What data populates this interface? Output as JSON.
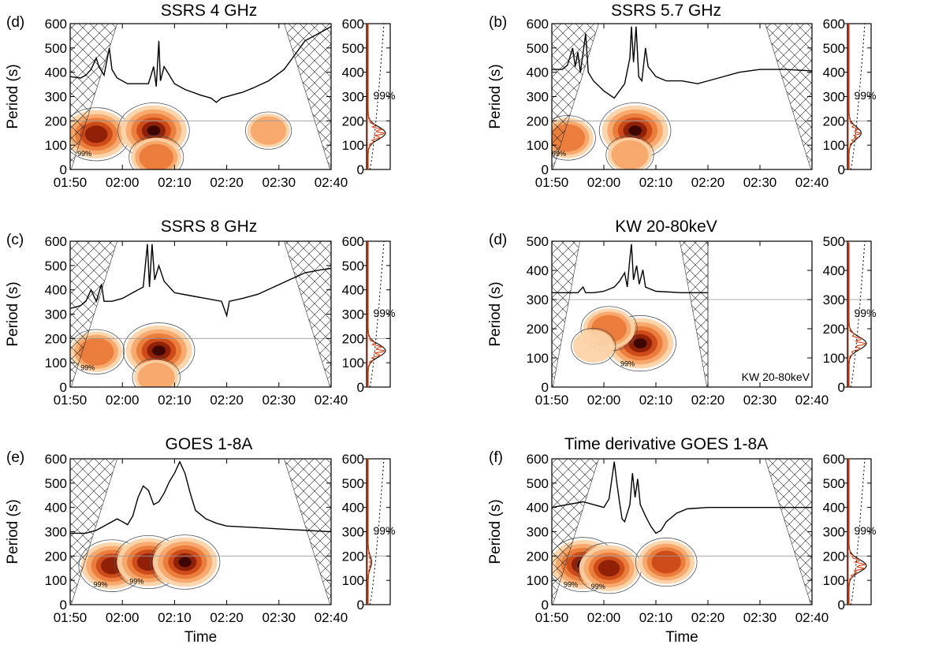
{
  "chart_data": [
    {
      "id": "a",
      "panel_label": "(d)",
      "title": "SSRS 4 GHz",
      "type": "wavelet",
      "ylabel": "Period (s)",
      "xlabel": "",
      "ylim": [
        0,
        600
      ],
      "yticks": [
        "0",
        "100",
        "200",
        "300",
        "400",
        "500",
        "600"
      ],
      "xticks": [
        "01:50",
        "02:00",
        "02:10",
        "02:20",
        "02:30",
        "02:40"
      ],
      "xrange_min": [
        0,
        50
      ],
      "gws_yticks": [
        "0",
        "100",
        "200",
        "300",
        "400",
        "500",
        "600"
      ],
      "sig_label": "99%",
      "contour_label": "99%",
      "reference_period": 200,
      "cone_end_min": 50,
      "lightcurve": [
        [
          0,
          0.65
        ],
        [
          2,
          0.64
        ],
        [
          3,
          0.66
        ],
        [
          4,
          0.7
        ],
        [
          5,
          0.78
        ],
        [
          5.5,
          0.72
        ],
        [
          6.5,
          0.66
        ],
        [
          7.5,
          0.85
        ],
        [
          8,
          0.7
        ],
        [
          9,
          0.64
        ],
        [
          11,
          0.6
        ],
        [
          13,
          0.6
        ],
        [
          15,
          0.6
        ],
        [
          16,
          0.72
        ],
        [
          16.5,
          0.58
        ],
        [
          17,
          0.9
        ],
        [
          17.3,
          0.62
        ],
        [
          18,
          0.72
        ],
        [
          19,
          0.66
        ],
        [
          20,
          0.6
        ],
        [
          22,
          0.56
        ],
        [
          25,
          0.52
        ],
        [
          27,
          0.5
        ],
        [
          28,
          0.47
        ],
        [
          29,
          0.5
        ],
        [
          31,
          0.52
        ],
        [
          33,
          0.54
        ],
        [
          35,
          0.57
        ],
        [
          38,
          0.62
        ],
        [
          41,
          0.7
        ],
        [
          43,
          0.8
        ],
        [
          45,
          0.9
        ],
        [
          47,
          0.94
        ],
        [
          48,
          0.96
        ],
        [
          50,
          1.0
        ]
      ],
      "power_blobs": [
        {
          "t": 5,
          "p": 145,
          "intensity": 0.9
        },
        {
          "t": 16,
          "p": 160,
          "intensity": 1.0
        },
        {
          "t": 16.5,
          "p": 50,
          "intensity": 0.5
        },
        {
          "t": 38,
          "p": 160,
          "intensity": 0.25
        }
      ],
      "gws": {
        "peak_period": 150,
        "max_power": 1.0
      }
    },
    {
      "id": "b",
      "panel_label": "(b)",
      "title": "SSRS 5.7 GHz",
      "type": "wavelet",
      "ylabel": "Period (s)",
      "xlabel": "",
      "ylim": [
        0,
        600
      ],
      "yticks": [
        "0",
        "100",
        "200",
        "300",
        "400",
        "500",
        "600"
      ],
      "xticks": [
        "01:50",
        "02:00",
        "02:10",
        "02:20",
        "02:30",
        "02:40"
      ],
      "xrange_min": [
        0,
        50
      ],
      "gws_yticks": [
        "0",
        "100",
        "200",
        "300",
        "400",
        "500",
        "600"
      ],
      "sig_label": "99%",
      "contour_label": "99%",
      "reference_period": 200,
      "cone_end_min": 50,
      "lightcurve": [
        [
          0,
          0.7
        ],
        [
          2,
          0.7
        ],
        [
          3,
          0.73
        ],
        [
          4,
          0.85
        ],
        [
          4.5,
          0.72
        ],
        [
          5,
          0.82
        ],
        [
          5.5,
          0.68
        ],
        [
          6.5,
          0.95
        ],
        [
          7,
          0.68
        ],
        [
          8,
          0.62
        ],
        [
          10,
          0.55
        ],
        [
          12,
          0.5
        ],
        [
          14,
          0.6
        ],
        [
          15,
          0.78
        ],
        [
          15.3,
          1.0
        ],
        [
          15.7,
          0.75
        ],
        [
          16.2,
          1.0
        ],
        [
          16.7,
          0.65
        ],
        [
          17.3,
          0.62
        ],
        [
          18,
          0.85
        ],
        [
          18.5,
          0.72
        ],
        [
          20,
          0.65
        ],
        [
          22,
          0.62
        ],
        [
          25,
          0.62
        ],
        [
          28,
          0.6
        ],
        [
          32,
          0.64
        ],
        [
          36,
          0.68
        ],
        [
          40,
          0.7
        ],
        [
          45,
          0.7
        ],
        [
          50,
          0.69
        ]
      ],
      "power_blobs": [
        {
          "t": 3,
          "p": 130,
          "intensity": 0.55
        },
        {
          "t": 16,
          "p": 160,
          "intensity": 1.0
        },
        {
          "t": 15,
          "p": 60,
          "intensity": 0.3
        }
      ],
      "gws": {
        "peak_period": 150,
        "max_power": 0.7
      }
    },
    {
      "id": "c",
      "panel_label": "(c)",
      "title": "SSRS 8 GHz",
      "type": "wavelet",
      "ylabel": "Period (s)",
      "xlabel": "",
      "ylim": [
        0,
        600
      ],
      "yticks": [
        "0",
        "100",
        "200",
        "300",
        "400",
        "500",
        "600"
      ],
      "xticks": [
        "01:50",
        "02:00",
        "02:10",
        "02:20",
        "02:30",
        "02:40"
      ],
      "xrange_min": [
        0,
        50
      ],
      "gws_yticks": [
        "0",
        "100",
        "200",
        "300",
        "400",
        "500",
        "600"
      ],
      "sig_label": "99%",
      "contour_label": "99%",
      "reference_period": 200,
      "cone_end_min": 50,
      "lightcurve": [
        [
          0,
          0.55
        ],
        [
          2,
          0.57
        ],
        [
          3,
          0.6
        ],
        [
          4,
          0.68
        ],
        [
          5,
          0.6
        ],
        [
          6,
          0.72
        ],
        [
          6.5,
          0.6
        ],
        [
          8,
          0.6
        ],
        [
          10,
          0.62
        ],
        [
          12,
          0.66
        ],
        [
          14,
          0.7
        ],
        [
          14.8,
          1.0
        ],
        [
          15.2,
          0.7
        ],
        [
          15.7,
          1.0
        ],
        [
          16.2,
          0.75
        ],
        [
          17,
          0.85
        ],
        [
          18,
          0.74
        ],
        [
          20,
          0.66
        ],
        [
          23,
          0.64
        ],
        [
          26,
          0.62
        ],
        [
          29,
          0.6
        ],
        [
          30,
          0.5
        ],
        [
          30.5,
          0.6
        ],
        [
          33,
          0.62
        ],
        [
          36,
          0.65
        ],
        [
          39,
          0.7
        ],
        [
          42,
          0.75
        ],
        [
          45,
          0.8
        ],
        [
          48,
          0.82
        ],
        [
          50,
          0.83
        ]
      ],
      "power_blobs": [
        {
          "t": 5,
          "p": 145,
          "intensity": 0.55
        },
        {
          "t": 17,
          "p": 150,
          "intensity": 1.0
        },
        {
          "t": 16.5,
          "p": 40,
          "intensity": 0.3
        }
      ],
      "gws": {
        "peak_period": 150,
        "max_power": 1.0
      }
    },
    {
      "id": "d",
      "panel_label": "(d)",
      "title": "KW 20-80keV",
      "type": "wavelet",
      "ylabel": "Period (s)",
      "xlabel": "",
      "ylim": [
        0,
        500
      ],
      "yticks": [
        "0",
        "100",
        "200",
        "300",
        "400",
        "500"
      ],
      "xticks": [
        "01:50",
        "02:00",
        "02:10",
        "02:20",
        "02:30",
        "02:40"
      ],
      "xrange_min": [
        0,
        50
      ],
      "gws_yticks": [
        "0",
        "100",
        "200",
        "300",
        "400",
        "500"
      ],
      "sig_label": "99%",
      "contour_label": "99%",
      "reference_period": 300,
      "cone_end_min": 30,
      "inner_label": "KW 20-80keV",
      "lightcurve": [
        [
          0,
          0.66
        ],
        [
          3,
          0.66
        ],
        [
          5,
          0.66
        ],
        [
          6,
          0.7
        ],
        [
          6.5,
          0.66
        ],
        [
          8,
          0.66
        ],
        [
          10,
          0.67
        ],
        [
          12,
          0.7
        ],
        [
          13,
          0.74
        ],
        [
          14,
          0.8
        ],
        [
          14.5,
          0.7
        ],
        [
          15,
          0.9
        ],
        [
          15.3,
          1.0
        ],
        [
          15.7,
          0.75
        ],
        [
          16.3,
          0.85
        ],
        [
          16.8,
          0.72
        ],
        [
          17.5,
          0.82
        ],
        [
          18,
          0.7
        ],
        [
          20,
          0.67
        ],
        [
          25,
          0.66
        ],
        [
          30,
          0.66
        ]
      ],
      "power_blobs": [
        {
          "t": 17,
          "p": 150,
          "intensity": 1.0
        },
        {
          "t": 11,
          "p": 200,
          "intensity": 0.55
        },
        {
          "t": 8,
          "p": 140,
          "intensity": 0.2
        }
      ],
      "gws": {
        "peak_period": 150,
        "max_power": 1.0
      }
    },
    {
      "id": "e",
      "panel_label": "(e)",
      "title": "GOES 1-8A",
      "type": "wavelet",
      "ylabel": "Period (s)",
      "xlabel": "Time",
      "ylim": [
        0,
        600
      ],
      "yticks": [
        "0",
        "100",
        "200",
        "300",
        "400",
        "500",
        "600"
      ],
      "xticks": [
        "01:50",
        "02:00",
        "02:10",
        "02:20",
        "02:30",
        "02:40"
      ],
      "xrange_min": [
        0,
        50
      ],
      "gws_yticks": [
        "0",
        "100",
        "200",
        "300",
        "400",
        "500",
        "600"
      ],
      "sig_label": "99%",
      "contour_label": "99%",
      "reference_period": 200,
      "cone_end_min": 50,
      "lightcurve": [
        [
          0,
          0.5
        ],
        [
          3,
          0.5
        ],
        [
          5,
          0.52
        ],
        [
          7,
          0.56
        ],
        [
          9,
          0.6
        ],
        [
          10,
          0.58
        ],
        [
          11,
          0.56
        ],
        [
          12,
          0.62
        ],
        [
          13,
          0.75
        ],
        [
          14,
          0.83
        ],
        [
          15,
          0.8
        ],
        [
          16,
          0.7
        ],
        [
          17,
          0.72
        ],
        [
          18,
          0.78
        ],
        [
          19,
          0.86
        ],
        [
          20,
          0.92
        ],
        [
          21,
          1.0
        ],
        [
          22,
          0.92
        ],
        [
          23,
          0.78
        ],
        [
          24,
          0.66
        ],
        [
          26,
          0.6
        ],
        [
          28,
          0.57
        ],
        [
          30,
          0.55
        ],
        [
          35,
          0.54
        ],
        [
          40,
          0.53
        ],
        [
          45,
          0.52
        ],
        [
          50,
          0.51
        ]
      ],
      "power_blobs": [
        {
          "t": 8,
          "p": 160,
          "intensity": 0.85
        },
        {
          "t": 15,
          "p": 175,
          "intensity": 0.9
        },
        {
          "t": 22,
          "p": 175,
          "intensity": 0.95
        }
      ],
      "gws": {
        "peak_period": 175,
        "max_power": 0.2
      }
    },
    {
      "id": "f",
      "panel_label": "(f)",
      "title": "Time derivative GOES 1-8A",
      "type": "wavelet",
      "ylabel": "Period (s)",
      "xlabel": "Time",
      "ylim": [
        0,
        600
      ],
      "yticks": [
        "0",
        "100",
        "200",
        "300",
        "400",
        "500",
        "600"
      ],
      "xticks": [
        "01:50",
        "02:00",
        "02:10",
        "02:20",
        "02:30",
        "02:40"
      ],
      "xrange_min": [
        0,
        50
      ],
      "gws_yticks": [
        "0",
        "100",
        "200",
        "300",
        "400",
        "500",
        "600"
      ],
      "sig_label": "99%",
      "contour_label": "99%",
      "reference_period": 200,
      "cone_end_min": 50,
      "lightcurve": [
        [
          0,
          0.68
        ],
        [
          3,
          0.7
        ],
        [
          6,
          0.72
        ],
        [
          8,
          0.7
        ],
        [
          10,
          0.68
        ],
        [
          11,
          0.74
        ],
        [
          12,
          1.0
        ],
        [
          12.5,
          0.85
        ],
        [
          13,
          0.72
        ],
        [
          13.5,
          0.6
        ],
        [
          14,
          0.58
        ],
        [
          15,
          0.7
        ],
        [
          15.5,
          0.92
        ],
        [
          16,
          0.75
        ],
        [
          16.5,
          0.88
        ],
        [
          17,
          0.7
        ],
        [
          18,
          0.62
        ],
        [
          19,
          0.55
        ],
        [
          20,
          0.5
        ],
        [
          21,
          0.52
        ],
        [
          22,
          0.58
        ],
        [
          24,
          0.64
        ],
        [
          26,
          0.67
        ],
        [
          30,
          0.68
        ],
        [
          35,
          0.68
        ],
        [
          40,
          0.68
        ],
        [
          45,
          0.68
        ],
        [
          50,
          0.68
        ]
      ],
      "power_blobs": [
        {
          "t": 6,
          "p": 165,
          "intensity": 0.95
        },
        {
          "t": 11,
          "p": 150,
          "intensity": 0.8
        },
        {
          "t": 22,
          "p": 175,
          "intensity": 0.7
        }
      ],
      "gws": {
        "peak_period": 160,
        "max_power": 1.0
      }
    }
  ]
}
